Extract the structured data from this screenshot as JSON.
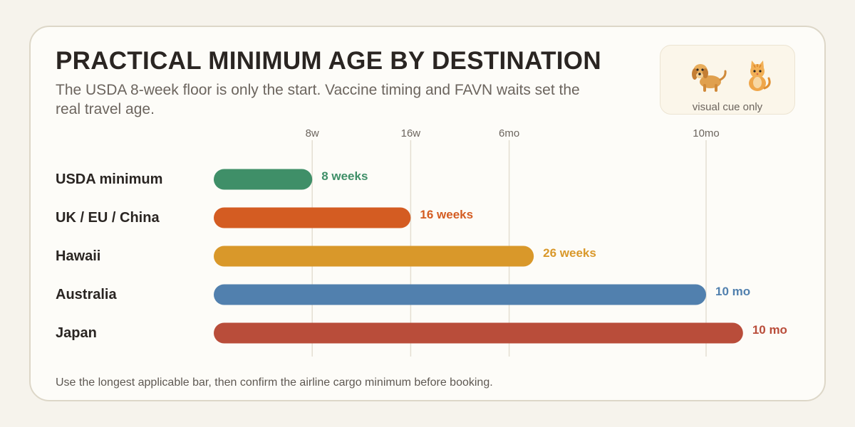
{
  "title": "PRACTICAL MINIMUM AGE BY DESTINATION",
  "subtitle": "The USDA 8-week floor is only the start. Vaccine timing and FAVN waits set the real travel age.",
  "visual_cue": {
    "label": "visual cue only",
    "icons": [
      "dog-icon",
      "cat-icon"
    ]
  },
  "footnote": "Use the longest applicable bar, then confirm the airline cargo minimum before booking.",
  "chart_data": {
    "type": "bar",
    "orientation": "horizontal",
    "title": "PRACTICAL MINIMUM AGE BY DESTINATION",
    "x_unit": "weeks",
    "xlim": [
      0,
      43
    ],
    "grid": true,
    "ticks": [
      {
        "value": 8,
        "label": "8w"
      },
      {
        "value": 16,
        "label": "16w"
      },
      {
        "value": 24,
        "label": "6mo"
      },
      {
        "value": 40,
        "label": "10mo"
      }
    ],
    "categories": [
      "USDA minimum",
      "UK / EU / China",
      "Hawaii",
      "Australia",
      "Japan"
    ],
    "values": [
      8,
      16,
      26,
      40,
      43
    ],
    "value_labels": [
      "8 weeks",
      "16 weeks",
      "26 weeks",
      "10 mo",
      "10 mo"
    ],
    "colors": [
      "#3f8f68",
      "#d45c22",
      "#d9982a",
      "#5180ae",
      "#b94d3a"
    ]
  }
}
